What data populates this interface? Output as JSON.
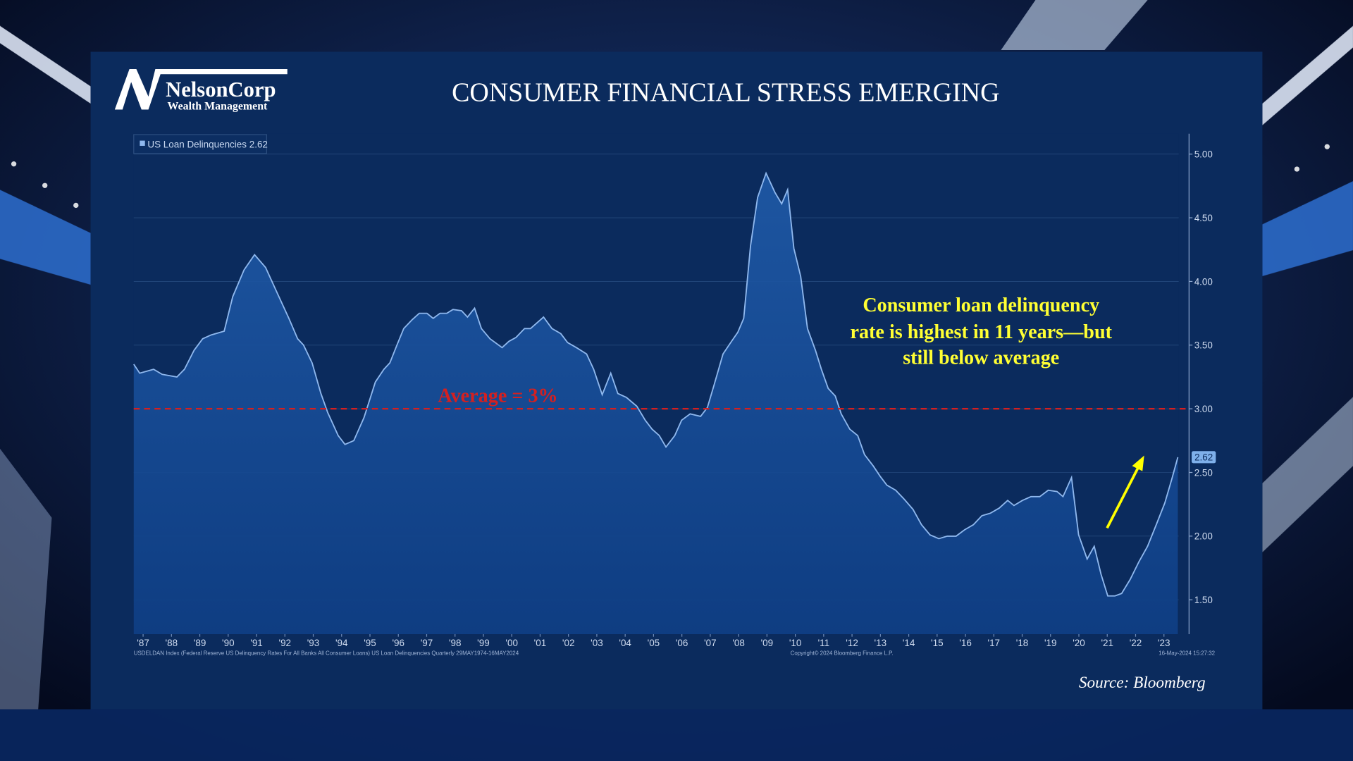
{
  "brand": {
    "name": "NelsonCorp",
    "tagline": "Wealth Management"
  },
  "chart_data": {
    "type": "area",
    "title": "CONSUMER FINANCIAL STRESS EMERGING",
    "series": [
      {
        "name": "US Loan Delinquencies",
        "color": "#8fb8ee",
        "x": [
          1987.17,
          1987.38,
          1987.87,
          1988.17,
          1988.69,
          1988.96,
          1989.3,
          1989.6,
          1989.9,
          1990.36,
          1990.66,
          1991.06,
          1991.43,
          1991.82,
          1992.25,
          1992.64,
          1992.95,
          1993.16,
          1993.46,
          1993.77,
          1994.01,
          1994.38,
          1994.62,
          1994.93,
          1995.29,
          1995.69,
          1995.99,
          1996.2,
          1996.45,
          1996.69,
          1996.99,
          1997.24,
          1997.51,
          1997.73,
          1997.97,
          1998.21,
          1998.43,
          1998.73,
          1998.94,
          1999.19,
          1999.43,
          1999.73,
          2000.16,
          2000.4,
          2000.65,
          2000.95,
          2001.16,
          2001.62,
          2001.92,
          2002.23,
          2002.47,
          2002.78,
          2003.14,
          2003.39,
          2003.69,
          2003.99,
          2004.24,
          2004.54,
          2004.91,
          2005.21,
          2005.45,
          2005.7,
          2005.94,
          2006.25,
          2006.49,
          2006.79,
          2007.16,
          2007.4,
          2007.64,
          2007.95,
          2008.25,
          2008.47,
          2008.68,
          2008.92,
          2009.17,
          2009.47,
          2009.78,
          2010.02,
          2010.23,
          2010.45,
          2010.69,
          2010.93,
          2011.21,
          2011.42,
          2011.66,
          2011.91,
          2012.12,
          2012.42,
          2012.7,
          2012.94,
          2013.25,
          2013.49,
          2013.73,
          2014.04,
          2014.34,
          2014.65,
          2014.95,
          2015.25,
          2015.56,
          2015.86,
          2016.17,
          2016.47,
          2016.78,
          2017.08,
          2017.38,
          2017.69,
          2017.99,
          2018.21,
          2018.51,
          2018.81,
          2019.12,
          2019.42,
          2019.73,
          2019.94,
          2020.24,
          2020.49,
          2020.79,
          2021.04,
          2021.28,
          2021.52,
          2021.77,
          2022.01,
          2022.31,
          2022.62,
          2022.92,
          2023.23,
          2023.53,
          2023.78,
          2023.99
        ],
        "values": [
          3.35,
          3.28,
          3.31,
          3.27,
          3.25,
          3.31,
          3.46,
          3.55,
          3.58,
          3.61,
          3.88,
          4.09,
          4.21,
          4.11,
          3.9,
          3.71,
          3.55,
          3.5,
          3.36,
          3.12,
          2.97,
          2.79,
          2.72,
          2.75,
          2.93,
          3.21,
          3.31,
          3.36,
          3.5,
          3.63,
          3.7,
          3.75,
          3.75,
          3.71,
          3.75,
          3.75,
          3.78,
          3.77,
          3.72,
          3.79,
          3.63,
          3.55,
          3.48,
          3.53,
          3.56,
          3.63,
          3.63,
          3.72,
          3.63,
          3.59,
          3.52,
          3.48,
          3.43,
          3.31,
          3.11,
          3.28,
          3.12,
          3.09,
          3.02,
          2.91,
          2.84,
          2.79,
          2.7,
          2.79,
          2.91,
          2.96,
          2.94,
          3.01,
          3.19,
          3.43,
          3.53,
          3.6,
          3.71,
          4.28,
          4.66,
          4.85,
          4.7,
          4.61,
          4.72,
          4.26,
          4.04,
          3.63,
          3.46,
          3.31,
          3.16,
          3.1,
          2.96,
          2.84,
          2.79,
          2.64,
          2.55,
          2.47,
          2.4,
          2.36,
          2.29,
          2.21,
          2.09,
          2.01,
          1.98,
          2.0,
          2.0,
          2.05,
          2.09,
          2.16,
          2.18,
          2.22,
          2.28,
          2.24,
          2.28,
          2.31,
          2.31,
          2.36,
          2.35,
          2.31,
          2.46,
          2.01,
          1.82,
          1.92,
          1.7,
          1.53,
          1.53,
          1.55,
          1.66,
          1.8,
          1.92,
          2.09,
          2.26,
          2.45,
          2.62
        ]
      }
    ],
    "xlim": [
      1987.17,
      2024.02
    ],
    "ylim": [
      1.23,
      5.16
    ],
    "yticks": [
      {
        "value": 1.5,
        "label": "1.50"
      },
      {
        "value": 2,
        "label": "2.00"
      },
      {
        "value": 2.5,
        "label": "2.50"
      },
      {
        "value": 3,
        "label": "3.00"
      },
      {
        "value": 3.5,
        "label": "3.50"
      },
      {
        "value": 4,
        "label": "4.00"
      },
      {
        "value": 4.5,
        "label": "4.50"
      },
      {
        "value": 5,
        "label": "5.00"
      }
    ],
    "xticks": [
      {
        "value": 1987.5,
        "label": "'87"
      },
      {
        "value": 1988.5,
        "label": "'88"
      },
      {
        "value": 1989.5,
        "label": "'89"
      },
      {
        "value": 1990.5,
        "label": "'90"
      },
      {
        "value": 1991.5,
        "label": "'91"
      },
      {
        "value": 1992.5,
        "label": "'92"
      },
      {
        "value": 1993.5,
        "label": "'93"
      },
      {
        "value": 1994.5,
        "label": "'94"
      },
      {
        "value": 1995.5,
        "label": "'95"
      },
      {
        "value": 1996.5,
        "label": "'96"
      },
      {
        "value": 1997.5,
        "label": "'97"
      },
      {
        "value": 1998.5,
        "label": "'98"
      },
      {
        "value": 1999.5,
        "label": "'99"
      },
      {
        "value": 2000.5,
        "label": "'00"
      },
      {
        "value": 2001.5,
        "label": "'01"
      },
      {
        "value": 2002.5,
        "label": "'02"
      },
      {
        "value": 2003.5,
        "label": "'03"
      },
      {
        "value": 2004.5,
        "label": "'04"
      },
      {
        "value": 2005.5,
        "label": "'05"
      },
      {
        "value": 2006.5,
        "label": "'06"
      },
      {
        "value": 2007.5,
        "label": "'07"
      },
      {
        "value": 2008.5,
        "label": "'08"
      },
      {
        "value": 2009.5,
        "label": "'09"
      },
      {
        "value": 2010.5,
        "label": "'10"
      },
      {
        "value": 2011.5,
        "label": "'11"
      },
      {
        "value": 2012.5,
        "label": "'12"
      },
      {
        "value": 2013.5,
        "label": "'13"
      },
      {
        "value": 2014.5,
        "label": "'14"
      },
      {
        "value": 2015.5,
        "label": "'15"
      },
      {
        "value": 2016.5,
        "label": "'16"
      },
      {
        "value": 2017.5,
        "label": "'17"
      },
      {
        "value": 2018.5,
        "label": "'18"
      },
      {
        "value": 2019.5,
        "label": "'19"
      },
      {
        "value": 2020.5,
        "label": "'20"
      },
      {
        "value": 2021.5,
        "label": "'21"
      },
      {
        "value": 2022.5,
        "label": "'22"
      },
      {
        "value": 2023.5,
        "label": "'23"
      }
    ],
    "grid": true,
    "average": {
      "value": 3,
      "label": "Average = 3%",
      "color": "#d42020"
    },
    "annotation": [
      "Consumer loan delinquency",
      "rate is highest in 11 years—but",
      "still below average"
    ],
    "footnotes": [
      "USDELDAN Index (Federal Reserve US Delinquency Rates For All Banks All Consumer Loans) US Loan Delinquencies  Quarterly 29MAY1974-16MAY2024",
      "Copyright© 2024 Bloomberg Finance L.P.",
      "16-May-2024 15:27:32"
    ],
    "source": "Source: Bloomberg"
  }
}
